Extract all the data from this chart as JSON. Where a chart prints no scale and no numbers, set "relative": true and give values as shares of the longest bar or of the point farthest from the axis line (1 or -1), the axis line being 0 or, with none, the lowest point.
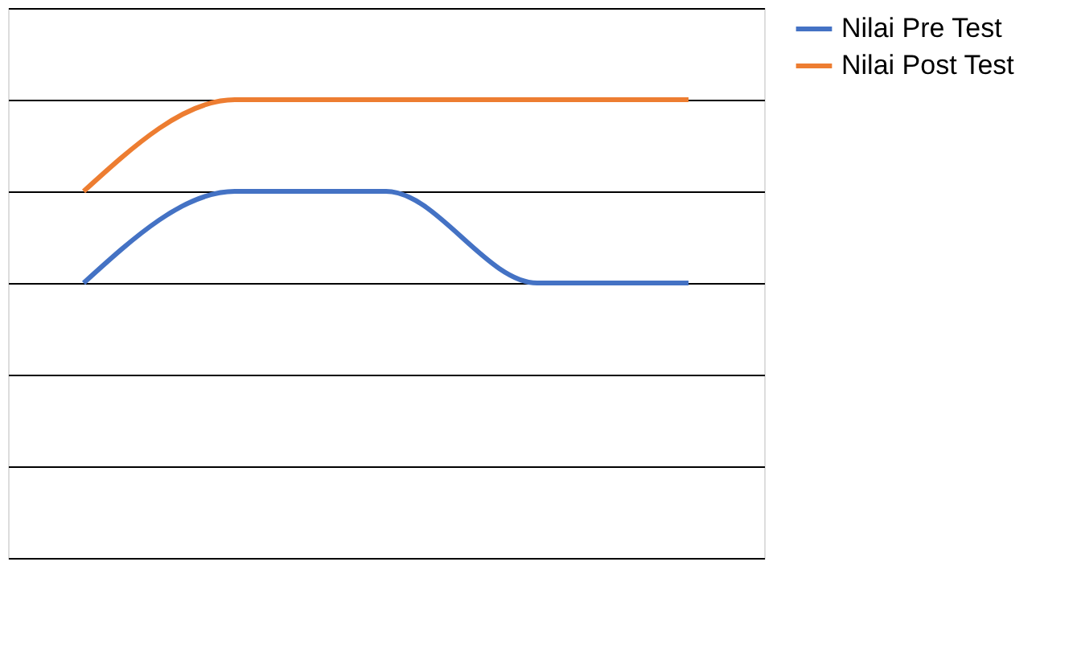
{
  "chart_data": {
    "type": "line",
    "relative": true,
    "categories": [
      null,
      null,
      null,
      null,
      null
    ],
    "series": [
      {
        "name": "Nilai Pre Test",
        "color": "#4472c4",
        "values": [
          0.6,
          0.8,
          0.8,
          0.6,
          0.6
        ]
      },
      {
        "name": "Nilai Post Test",
        "color": "#ed7d31",
        "values": [
          0.8,
          1,
          1,
          1,
          1
        ]
      }
    ],
    "grid": "y",
    "legend": "right",
    "marker": "none",
    "line_style": "solid"
  }
}
